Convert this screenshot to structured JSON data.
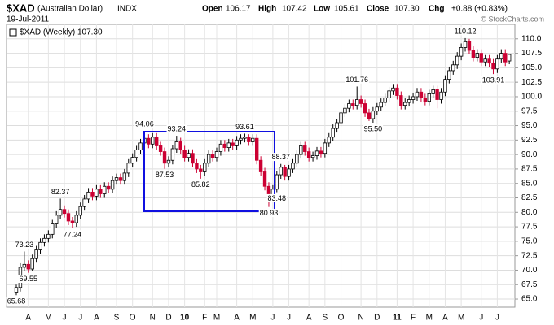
{
  "header": {
    "symbol": "$XAD",
    "name": "(Australian Dollar)",
    "exchange": "INDX",
    "date": "19-Jul-2011",
    "open_label": "Open",
    "open": "106.17",
    "high_label": "High",
    "high": "107.42",
    "low_label": "Low",
    "low": "105.61",
    "close_label": "Close",
    "close": "107.30",
    "chg_label": "Chg",
    "chg": "+0.88 (+0.83%)",
    "legend": "$XAD (Weekly) 107.30",
    "watermark": "© StockCharts.com"
  },
  "chart_data": {
    "type": "candlestick",
    "up_color": "#000000",
    "down_color": "#cc0033",
    "grid": true,
    "categories": [
      null,
      null,
      null,
      "A",
      null,
      null,
      null,
      null,
      "M",
      null,
      null,
      null,
      "J",
      null,
      null,
      null,
      "J",
      null,
      null,
      null,
      "A",
      null,
      null,
      null,
      null,
      "S",
      null,
      null,
      null,
      "O",
      null,
      null,
      null,
      null,
      "N",
      null,
      null,
      null,
      "D",
      null,
      null,
      null,
      "10",
      null,
      null,
      null,
      null,
      "F",
      null,
      null,
      "M",
      null,
      null,
      null,
      null,
      "A",
      null,
      null,
      null,
      "M",
      null,
      null,
      null,
      null,
      "J",
      null,
      null,
      null,
      "J",
      null,
      null,
      null,
      null,
      "A",
      null,
      null,
      null,
      "S",
      null,
      null,
      null,
      "O",
      null,
      null,
      null,
      null,
      "N",
      null,
      null,
      null,
      "D",
      null,
      null,
      null,
      null,
      "11",
      null,
      null,
      null,
      "F",
      null,
      null,
      null,
      "M",
      null,
      null,
      null,
      "A",
      null,
      null,
      null,
      "M",
      null,
      null,
      null,
      null,
      "J",
      null,
      null,
      null,
      "J",
      null,
      null,
      null
    ],
    "bold_categories": [
      "10",
      "11"
    ],
    "open": [
      66.2,
      67.0,
      70.5,
      71.0,
      70.2,
      72.0,
      73.5,
      74.8,
      75.5,
      76.2,
      78.0,
      79.5,
      80.5,
      79.8,
      78.5,
      78.2,
      79.5,
      81.0,
      82.3,
      83.5,
      82.8,
      84.0,
      83.2,
      84.5,
      84.0,
      85.5,
      86.0,
      85.5,
      86.8,
      88.5,
      89.5,
      90.8,
      92.0,
      92.8,
      91.8,
      93.0,
      91.5,
      90.5,
      88.5,
      89.0,
      91.0,
      92.2,
      90.8,
      89.5,
      90.2,
      88.5,
      87.5,
      87.0,
      88.5,
      90.0,
      89.5,
      90.5,
      91.8,
      91.2,
      92.0,
      91.5,
      92.5,
      92.8,
      93.0,
      92.2,
      92.8,
      89.0,
      87.0,
      84.5,
      82.5,
      84.0,
      86.5,
      87.8,
      86.2,
      87.5,
      88.5,
      90.0,
      91.5,
      90.5,
      89.5,
      89.8,
      90.6,
      90.2,
      92.0,
      93.0,
      94.5,
      95.5,
      97.2,
      98.0,
      98.8,
      98.5,
      99.5,
      98.8,
      97.2,
      96.2,
      97.5,
      98.2,
      99.0,
      99.8,
      101.0,
      101.5,
      100.2,
      98.5,
      99.0,
      99.5,
      100.0,
      100.8,
      99.8,
      99.2,
      100.5,
      101.2,
      99.5,
      100.8,
      103.0,
      104.5,
      105.5,
      107.0,
      108.5,
      109.5,
      108.0,
      106.8,
      107.5,
      106.0,
      106.5,
      105.8,
      104.8,
      106.5,
      107.5,
      106.17
    ],
    "high": [
      67.5,
      71.2,
      73.23,
      71.7,
      72.7,
      74.2,
      75.5,
      76.2,
      76.9,
      78.7,
      80.2,
      82.37,
      81.2,
      80.5,
      79.2,
      80.2,
      81.7,
      83.0,
      84.2,
      84.2,
      84.7,
      84.7,
      85.2,
      85.2,
      86.2,
      86.7,
      86.7,
      87.5,
      89.2,
      90.2,
      91.5,
      92.7,
      94.06,
      93.5,
      93.7,
      93.7,
      92.2,
      91.2,
      89.7,
      91.7,
      93.24,
      92.9,
      91.5,
      90.9,
      90.9,
      89.2,
      88.2,
      89.2,
      90.7,
      90.7,
      91.2,
      92.5,
      92.5,
      92.7,
      92.7,
      93.2,
      93.5,
      93.61,
      93.5,
      93.5,
      93.5,
      89.7,
      87.7,
      85.2,
      84.7,
      87.2,
      88.37,
      88.2,
      88.2,
      89.2,
      90.7,
      92.2,
      92.2,
      91.2,
      90.5,
      91.3,
      91.3,
      92.7,
      93.7,
      95.2,
      96.2,
      97.9,
      98.7,
      99.5,
      99.5,
      101.76,
      100.2,
      99.5,
      97.9,
      98.2,
      98.9,
      99.7,
      100.5,
      101.7,
      102.2,
      102.2,
      100.9,
      99.7,
      100.2,
      100.7,
      101.5,
      101.5,
      100.5,
      101.2,
      101.9,
      101.9,
      101.5,
      103.7,
      105.2,
      106.2,
      107.7,
      109.2,
      110.12,
      110.0,
      108.7,
      108.2,
      108.2,
      107.2,
      107.2,
      106.5,
      107.2,
      108.2,
      108.2,
      107.42
    ],
    "low": [
      65.68,
      66.3,
      69.8,
      69.55,
      69.8,
      71.3,
      72.8,
      74.1,
      74.8,
      75.5,
      77.3,
      78.8,
      79.1,
      77.8,
      77.24,
      77.5,
      78.8,
      80.3,
      81.6,
      82.1,
      82.1,
      82.5,
      82.5,
      83.3,
      83.3,
      84.8,
      84.8,
      84.8,
      86.1,
      87.8,
      88.8,
      90.1,
      91.3,
      91.1,
      91.1,
      90.8,
      89.8,
      87.53,
      87.8,
      88.3,
      90.3,
      90.1,
      88.8,
      88.8,
      87.8,
      86.8,
      85.82,
      86.3,
      87.8,
      88.8,
      88.8,
      89.8,
      90.5,
      90.5,
      90.8,
      90.8,
      91.8,
      92.1,
      91.5,
      91.5,
      88.3,
      86.3,
      83.8,
      80.93,
      81.8,
      83.48,
      85.8,
      85.5,
      85.5,
      86.8,
      87.8,
      89.3,
      89.8,
      88.8,
      88.8,
      89.1,
      89.5,
      89.5,
      91.3,
      92.3,
      93.8,
      94.8,
      96.5,
      97.3,
      97.8,
      97.8,
      98.1,
      96.5,
      95.8,
      95.5,
      96.8,
      97.5,
      98.3,
      99.1,
      100.3,
      99.5,
      97.8,
      97.8,
      98.3,
      98.8,
      99.3,
      99.1,
      98.5,
      98.5,
      99.8,
      98.0,
      98.8,
      100.1,
      102.3,
      103.8,
      104.8,
      106.3,
      107.8,
      107.3,
      106.1,
      106.1,
      105.3,
      105.3,
      105.1,
      103.91,
      104.1,
      105.8,
      105.3,
      105.61
    ],
    "close": [
      67.0,
      70.5,
      71.0,
      70.2,
      72.0,
      73.5,
      74.8,
      75.5,
      76.2,
      78.0,
      79.5,
      80.5,
      79.8,
      78.5,
      78.2,
      79.5,
      81.0,
      82.3,
      83.5,
      82.8,
      84.0,
      83.2,
      84.5,
      84.0,
      85.5,
      86.0,
      85.5,
      86.8,
      88.5,
      89.5,
      90.8,
      92.0,
      92.8,
      91.8,
      93.0,
      91.5,
      90.5,
      88.5,
      89.0,
      91.0,
      92.2,
      90.8,
      89.5,
      90.2,
      88.5,
      87.5,
      87.0,
      88.5,
      90.0,
      89.5,
      90.5,
      91.8,
      91.2,
      92.0,
      91.5,
      92.5,
      92.8,
      93.0,
      92.2,
      92.8,
      89.0,
      87.0,
      84.5,
      82.5,
      84.0,
      86.5,
      87.8,
      86.2,
      87.5,
      88.5,
      90.0,
      91.5,
      90.5,
      89.5,
      89.8,
      90.6,
      90.2,
      92.0,
      93.0,
      94.5,
      95.5,
      97.2,
      98.0,
      98.8,
      98.5,
      99.5,
      98.8,
      97.2,
      96.2,
      97.5,
      98.2,
      99.0,
      99.8,
      101.0,
      101.5,
      100.2,
      98.5,
      99.0,
      99.5,
      100.0,
      100.8,
      99.8,
      99.2,
      100.5,
      101.2,
      99.5,
      100.8,
      103.0,
      104.5,
      105.5,
      107.0,
      108.5,
      109.5,
      108.0,
      106.8,
      107.5,
      106.0,
      106.5,
      105.8,
      104.8,
      106.5,
      107.5,
      106.0,
      107.3
    ],
    "annotations": [
      65.68,
      69.55,
      73.23,
      82.37,
      77.24,
      94.06,
      87.53,
      93.24,
      85.82,
      93.61,
      88.37,
      80.93,
      83.48,
      101.76,
      {
        "value": 95.5,
        "label": "95.50"
      },
      110.12,
      103.91
    ],
    "ylim": [
      63.6,
      112.5
    ],
    "yticks": [
      {
        "value": 65,
        "label": "65.0"
      },
      67.5,
      {
        "value": 70,
        "label": "70.0"
      },
      72.5,
      {
        "value": 75,
        "label": "75.0"
      },
      77.5,
      {
        "value": 80,
        "label": "80.0"
      },
      82.5,
      {
        "value": 85,
        "label": "85.0"
      },
      87.5,
      {
        "value": 90,
        "label": "90.0"
      },
      92.5,
      {
        "value": 95,
        "label": "95.0"
      },
      97.5,
      {
        "value": 100,
        "label": "100.0"
      },
      102.5,
      {
        "value": 105,
        "label": "105.0"
      },
      107.5,
      {
        "value": 110,
        "label": "110.0"
      }
    ]
  }
}
